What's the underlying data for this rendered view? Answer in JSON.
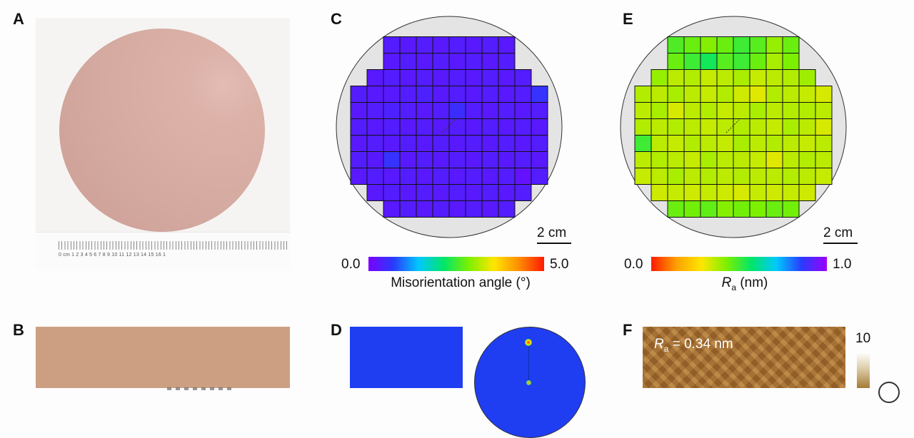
{
  "panels": {
    "a": {
      "letter": "A",
      "ruler": {
        "labels": "0 cm 1   2   3   4   5   6   7   8   9   10  11  12  13  14  15  16  1"
      }
    },
    "b": {
      "letter": "B"
    },
    "c": {
      "letter": "C",
      "colorbar": {
        "min": "0.0",
        "max": "5.0",
        "title": "Misorientation angle (°)",
        "stops": [
          "#7a00ff",
          "#2a3bff",
          "#00c8ff",
          "#00e56a",
          "#7cf000",
          "#ffe600",
          "#ff8c00",
          "#ff1a00"
        ]
      },
      "scalebar": "2 cm",
      "grid": {
        "rows": 11,
        "cols": 12,
        "value_range": [
          0,
          5
        ],
        "mask": [
          "001111111100",
          "001111111100",
          "011111111110",
          "111111111111",
          "111111111111",
          "111111111111",
          "111111111111",
          "111111111111",
          "111111111111",
          "011111111110",
          "001111111100"
        ],
        "values": [
          [
            0,
            0,
            0.35,
            0.3,
            0.35,
            0.3,
            0.35,
            0.3,
            0.35,
            0.3,
            0,
            0
          ],
          [
            0,
            0,
            0.3,
            0.35,
            0.3,
            0.35,
            0.3,
            0.35,
            0.3,
            0.35,
            0,
            0
          ],
          [
            0,
            0.3,
            0.35,
            0.3,
            0.35,
            0.3,
            0.35,
            0.3,
            0.35,
            0.3,
            0.35,
            0
          ],
          [
            0.35,
            0.3,
            0.3,
            0.35,
            0.4,
            0.3,
            0.35,
            0.3,
            0.35,
            0.3,
            0.35,
            0.6
          ],
          [
            0.3,
            0.35,
            0.4,
            0.35,
            0.3,
            0.35,
            0.55,
            0.35,
            0.3,
            0.35,
            0.3,
            0.35
          ],
          [
            0.35,
            0.3,
            0.35,
            0.3,
            0.35,
            0.3,
            0.35,
            0.3,
            0.35,
            0.3,
            0.35,
            0.3
          ],
          [
            0.3,
            0.35,
            0.3,
            0.35,
            0.3,
            0.35,
            0.3,
            0.35,
            0.3,
            0.35,
            0.3,
            0.35
          ],
          [
            0.35,
            0.3,
            0.6,
            0.3,
            0.35,
            0.3,
            0.35,
            0.3,
            0.35,
            0.3,
            0.35,
            0.3
          ],
          [
            0.3,
            0.35,
            0.3,
            0.35,
            0.3,
            0.35,
            0.3,
            0.35,
            0.3,
            0.35,
            0.2,
            0.35
          ],
          [
            0,
            0.3,
            0.35,
            0.3,
            0.35,
            0.3,
            0.35,
            0.3,
            0.35,
            0.3,
            0.35,
            0
          ],
          [
            0,
            0,
            0.3,
            0.35,
            0.3,
            0.35,
            0.3,
            0.35,
            0.3,
            0.35,
            0,
            0
          ]
        ]
      }
    },
    "d": {
      "letter": "D"
    },
    "e": {
      "letter": "E",
      "colorbar": {
        "min": "0.0",
        "max": "1.0",
        "title_main": "R",
        "title_sub": "a",
        "title_unit": " (nm)",
        "stops": [
          "#ff1a00",
          "#ffa000",
          "#ffe600",
          "#7cf000",
          "#00e56a",
          "#00c8ff",
          "#2a3bff",
          "#9a00ff"
        ]
      },
      "scalebar": "2 cm",
      "grid": {
        "rows": 11,
        "cols": 12,
        "value_range": [
          0,
          1
        ],
        "mask": [
          "001111111100",
          "001111111100",
          "011111111110",
          "111111111111",
          "111111111111",
          "111111111111",
          "111111111111",
          "111111111111",
          "111111111111",
          "011111111110",
          "001111111100"
        ],
        "values": [
          [
            0,
            0,
            0.48,
            0.45,
            0.42,
            0.45,
            0.5,
            0.47,
            0.4,
            0.45,
            0,
            0
          ],
          [
            0,
            0,
            0.45,
            0.5,
            0.55,
            0.47,
            0.5,
            0.45,
            0.38,
            0.43,
            0,
            0
          ],
          [
            0,
            0.4,
            0.36,
            0.37,
            0.35,
            0.36,
            0.38,
            0.35,
            0.36,
            0.37,
            0.39,
            0
          ],
          [
            0.37,
            0.36,
            0.38,
            0.36,
            0.35,
            0.37,
            0.34,
            0.32,
            0.37,
            0.36,
            0.35,
            0.33
          ],
          [
            0.36,
            0.38,
            0.33,
            0.36,
            0.37,
            0.35,
            0.36,
            0.38,
            0.36,
            0.37,
            0.37,
            0.36
          ],
          [
            0.37,
            0.36,
            0.37,
            0.36,
            0.35,
            0.36,
            0.37,
            0.36,
            0.35,
            0.38,
            0.36,
            0.33
          ],
          [
            0.5,
            0.36,
            0.35,
            0.37,
            0.36,
            0.35,
            0.38,
            0.36,
            0.37,
            0.36,
            0.35,
            0.36
          ],
          [
            0.36,
            0.37,
            0.36,
            0.35,
            0.38,
            0.36,
            0.36,
            0.35,
            0.32,
            0.36,
            0.37,
            0.36
          ],
          [
            0.35,
            0.36,
            0.38,
            0.36,
            0.37,
            0.36,
            0.37,
            0.36,
            0.36,
            0.37,
            0.36,
            0.35
          ],
          [
            0,
            0.34,
            0.35,
            0.34,
            0.35,
            0.34,
            0.33,
            0.35,
            0.34,
            0.35,
            0.34,
            0
          ],
          [
            0,
            0,
            0.45,
            0.44,
            0.46,
            0.42,
            0.44,
            0.43,
            0.45,
            0.44,
            0,
            0
          ]
        ]
      }
    },
    "f": {
      "letter": "F",
      "annotation_main": "R",
      "annotation_sub": "a",
      "annotation_rest": " = 0.34 nm",
      "colorbar_max": "10"
    }
  }
}
